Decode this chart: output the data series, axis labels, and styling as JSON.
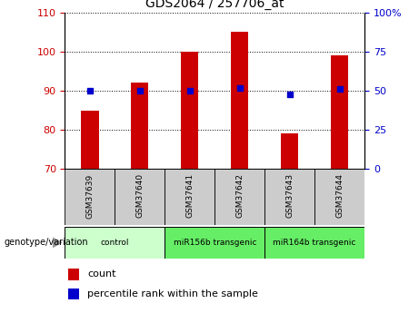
{
  "title": "GDS2064 / 257706_at",
  "samples": [
    "GSM37639",
    "GSM37640",
    "GSM37641",
    "GSM37642",
    "GSM37643",
    "GSM37644"
  ],
  "counts": [
    85,
    92,
    100,
    105,
    79,
    99
  ],
  "percentile_ranks": [
    50,
    50,
    50,
    52,
    48,
    51
  ],
  "ylim_left": [
    70,
    110
  ],
  "ylim_right": [
    0,
    100
  ],
  "yticks_left": [
    70,
    80,
    90,
    100,
    110
  ],
  "yticks_right": [
    0,
    25,
    50,
    75,
    100
  ],
  "bar_color": "#cc0000",
  "dot_color": "#0000cc",
  "groups": [
    {
      "label": "control",
      "color": "#ccffcc",
      "start": 0,
      "end": 1
    },
    {
      "label": "miR156b transgenic",
      "color": "#66ee66",
      "start": 2,
      "end": 3
    },
    {
      "label": "miR164b transgenic",
      "color": "#66ee66",
      "start": 4,
      "end": 5
    }
  ],
  "legend_count_label": "count",
  "legend_pct_label": "percentile rank within the sample",
  "tick_label_color_left": "#cc0000",
  "tick_label_color_right": "#0000cc",
  "background_xtick": "#cccccc",
  "bar_width": 0.35
}
